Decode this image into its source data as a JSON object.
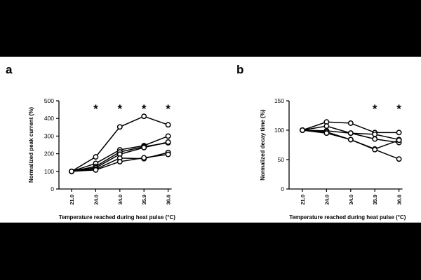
{
  "chart_data": [
    {
      "panel_label": "a",
      "type": "line",
      "ylabel": "Normalized peak current (%)",
      "xlabel": "Temperature reached during heat pulse (°C)",
      "categories": [
        "21.0",
        "24.0",
        "34.0",
        "35.9",
        "36.6"
      ],
      "ylim": [
        0,
        500
      ],
      "yticks": [
        0,
        100,
        200,
        300,
        400,
        500
      ],
      "significance": [
        "",
        "*",
        "*",
        "*",
        "*"
      ],
      "series": [
        {
          "values": [
            100,
            182,
            352,
            412,
            364
          ]
        },
        {
          "values": [
            100,
            145,
            222,
            246,
            300
          ]
        },
        {
          "values": [
            100,
            128,
            210,
            240,
            262
          ]
        },
        {
          "values": [
            100,
            120,
            197,
            235,
            266
          ]
        },
        {
          "values": [
            100,
            112,
            175,
            172,
            207
          ]
        },
        {
          "values": [
            100,
            108,
            155,
            177,
            196
          ]
        }
      ]
    },
    {
      "panel_label": "b",
      "type": "line",
      "ylabel": "Normalized decay time (%)",
      "xlabel": "Temperature reached during heat pulse (°C)",
      "categories": [
        "21.0",
        "24.0",
        "34.0",
        "35.9",
        "36.6"
      ],
      "ylim": [
        0,
        150
      ],
      "yticks": [
        0,
        50,
        100,
        150
      ],
      "significance": [
        "",
        "",
        "",
        "*",
        "*"
      ],
      "series": [
        {
          "values": [
            100,
            114,
            112,
            96,
            96
          ]
        },
        {
          "values": [
            100,
            107,
            95,
            93,
            84
          ]
        },
        {
          "values": [
            100,
            99,
            95,
            85,
            79
          ]
        },
        {
          "values": [
            100,
            97,
            84,
            68,
            83
          ]
        },
        {
          "values": [
            100,
            95,
            84,
            67,
            51
          ]
        }
      ]
    }
  ]
}
